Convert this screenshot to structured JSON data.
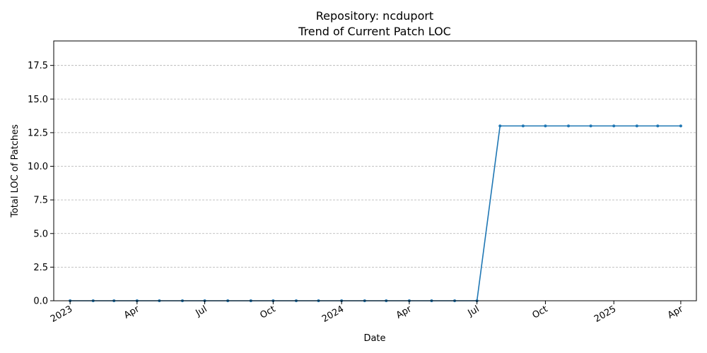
{
  "chart_data": {
    "type": "line",
    "title": "Repository: ncduport",
    "subtitle": "Trend of Current Patch LOC",
    "xlabel": "Date",
    "ylabel": "Total LOC of Patches",
    "ylim": [
      0,
      19.32
    ],
    "xlim": [
      "2022-12-10",
      "2025-04-22"
    ],
    "y_ticks": [
      "0.0",
      "2.5",
      "5.0",
      "7.5",
      "10.0",
      "12.5",
      "15.0",
      "17.5"
    ],
    "x_ticks": [
      {
        "date": "2023-01-01",
        "label": "2023"
      },
      {
        "date": "2023-04-01",
        "label": "Apr"
      },
      {
        "date": "2023-07-01",
        "label": "Jul"
      },
      {
        "date": "2023-10-01",
        "label": "Oct"
      },
      {
        "date": "2024-01-01",
        "label": "2024"
      },
      {
        "date": "2024-04-01",
        "label": "Apr"
      },
      {
        "date": "2024-07-01",
        "label": "Jul"
      },
      {
        "date": "2024-10-01",
        "label": "Oct"
      },
      {
        "date": "2025-01-01",
        "label": "2025"
      },
      {
        "date": "2025-04-01",
        "label": "Apr"
      }
    ],
    "grid": "y-dashed",
    "line_color": "#1f77b4",
    "series": [
      {
        "x": [
          "2023-01-01",
          "2023-02-01",
          "2023-03-01",
          "2023-04-01",
          "2023-05-01",
          "2023-06-01",
          "2023-07-01",
          "2023-08-01",
          "2023-09-01",
          "2023-10-01",
          "2023-11-01",
          "2023-12-01",
          "2024-01-01",
          "2024-02-01",
          "2024-03-01",
          "2024-04-01",
          "2024-05-01",
          "2024-06-01",
          "2024-07-01",
          "2024-08-01",
          "2024-09-01",
          "2024-10-01",
          "2024-11-01",
          "2024-12-01",
          "2025-01-01",
          "2025-02-01",
          "2025-03-01",
          "2025-04-01"
        ],
        "values": [
          0,
          0,
          0,
          0,
          0,
          0,
          0,
          0,
          0,
          0,
          0,
          0,
          0,
          0,
          0,
          0,
          0,
          0,
          0,
          13,
          13,
          13,
          13,
          13,
          13,
          13,
          13,
          13
        ]
      }
    ]
  }
}
